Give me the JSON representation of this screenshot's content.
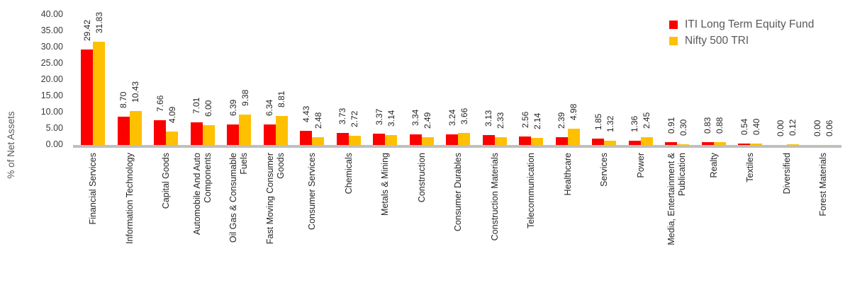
{
  "chart_data": {
    "type": "bar",
    "title": "",
    "ylabel": "% of Net Assets",
    "xlabel": "",
    "ylim": [
      0,
      40
    ],
    "ytick_step": 5,
    "ytick_decimals": 2,
    "grid": false,
    "legend_position": "top-right",
    "value_labels_rotated": true,
    "axis_line_color": "#bfbfbf",
    "categories": [
      "Financial Services",
      "Information Technology",
      "Capital Goods",
      "Automobile And Auto\nComponents",
      "Oil Gas & Consumable\nFuels",
      "Fast Moving Consumer\nGoods",
      "Consumer Services",
      "Chemicals",
      "Metals & Mining",
      "Construction",
      "Consumer Durables",
      "Construction Materials",
      "Telecommunication",
      "Healthcare",
      "Services",
      "Power",
      "Media, Entertainment &\nPublication",
      "Realty",
      "Textiles",
      "Diversified",
      "Forest Materials"
    ],
    "series": [
      {
        "name": "ITI Long Term Equity Fund",
        "color": "#fc0000",
        "values": [
          29.42,
          8.7,
          7.66,
          7.01,
          6.39,
          6.34,
          4.43,
          3.73,
          3.37,
          3.34,
          3.24,
          3.13,
          2.56,
          2.39,
          1.85,
          1.36,
          0.91,
          0.83,
          0.54,
          0.0,
          0.0
        ]
      },
      {
        "name": "Nifty 500 TRI",
        "color": "#ffc000",
        "values": [
          31.83,
          10.43,
          4.09,
          6.0,
          9.38,
          8.81,
          2.48,
          2.72,
          3.14,
          2.49,
          3.66,
          2.33,
          2.14,
          4.98,
          1.32,
          2.45,
          0.3,
          0.88,
          0.4,
          0.12,
          0.06
        ]
      }
    ]
  }
}
